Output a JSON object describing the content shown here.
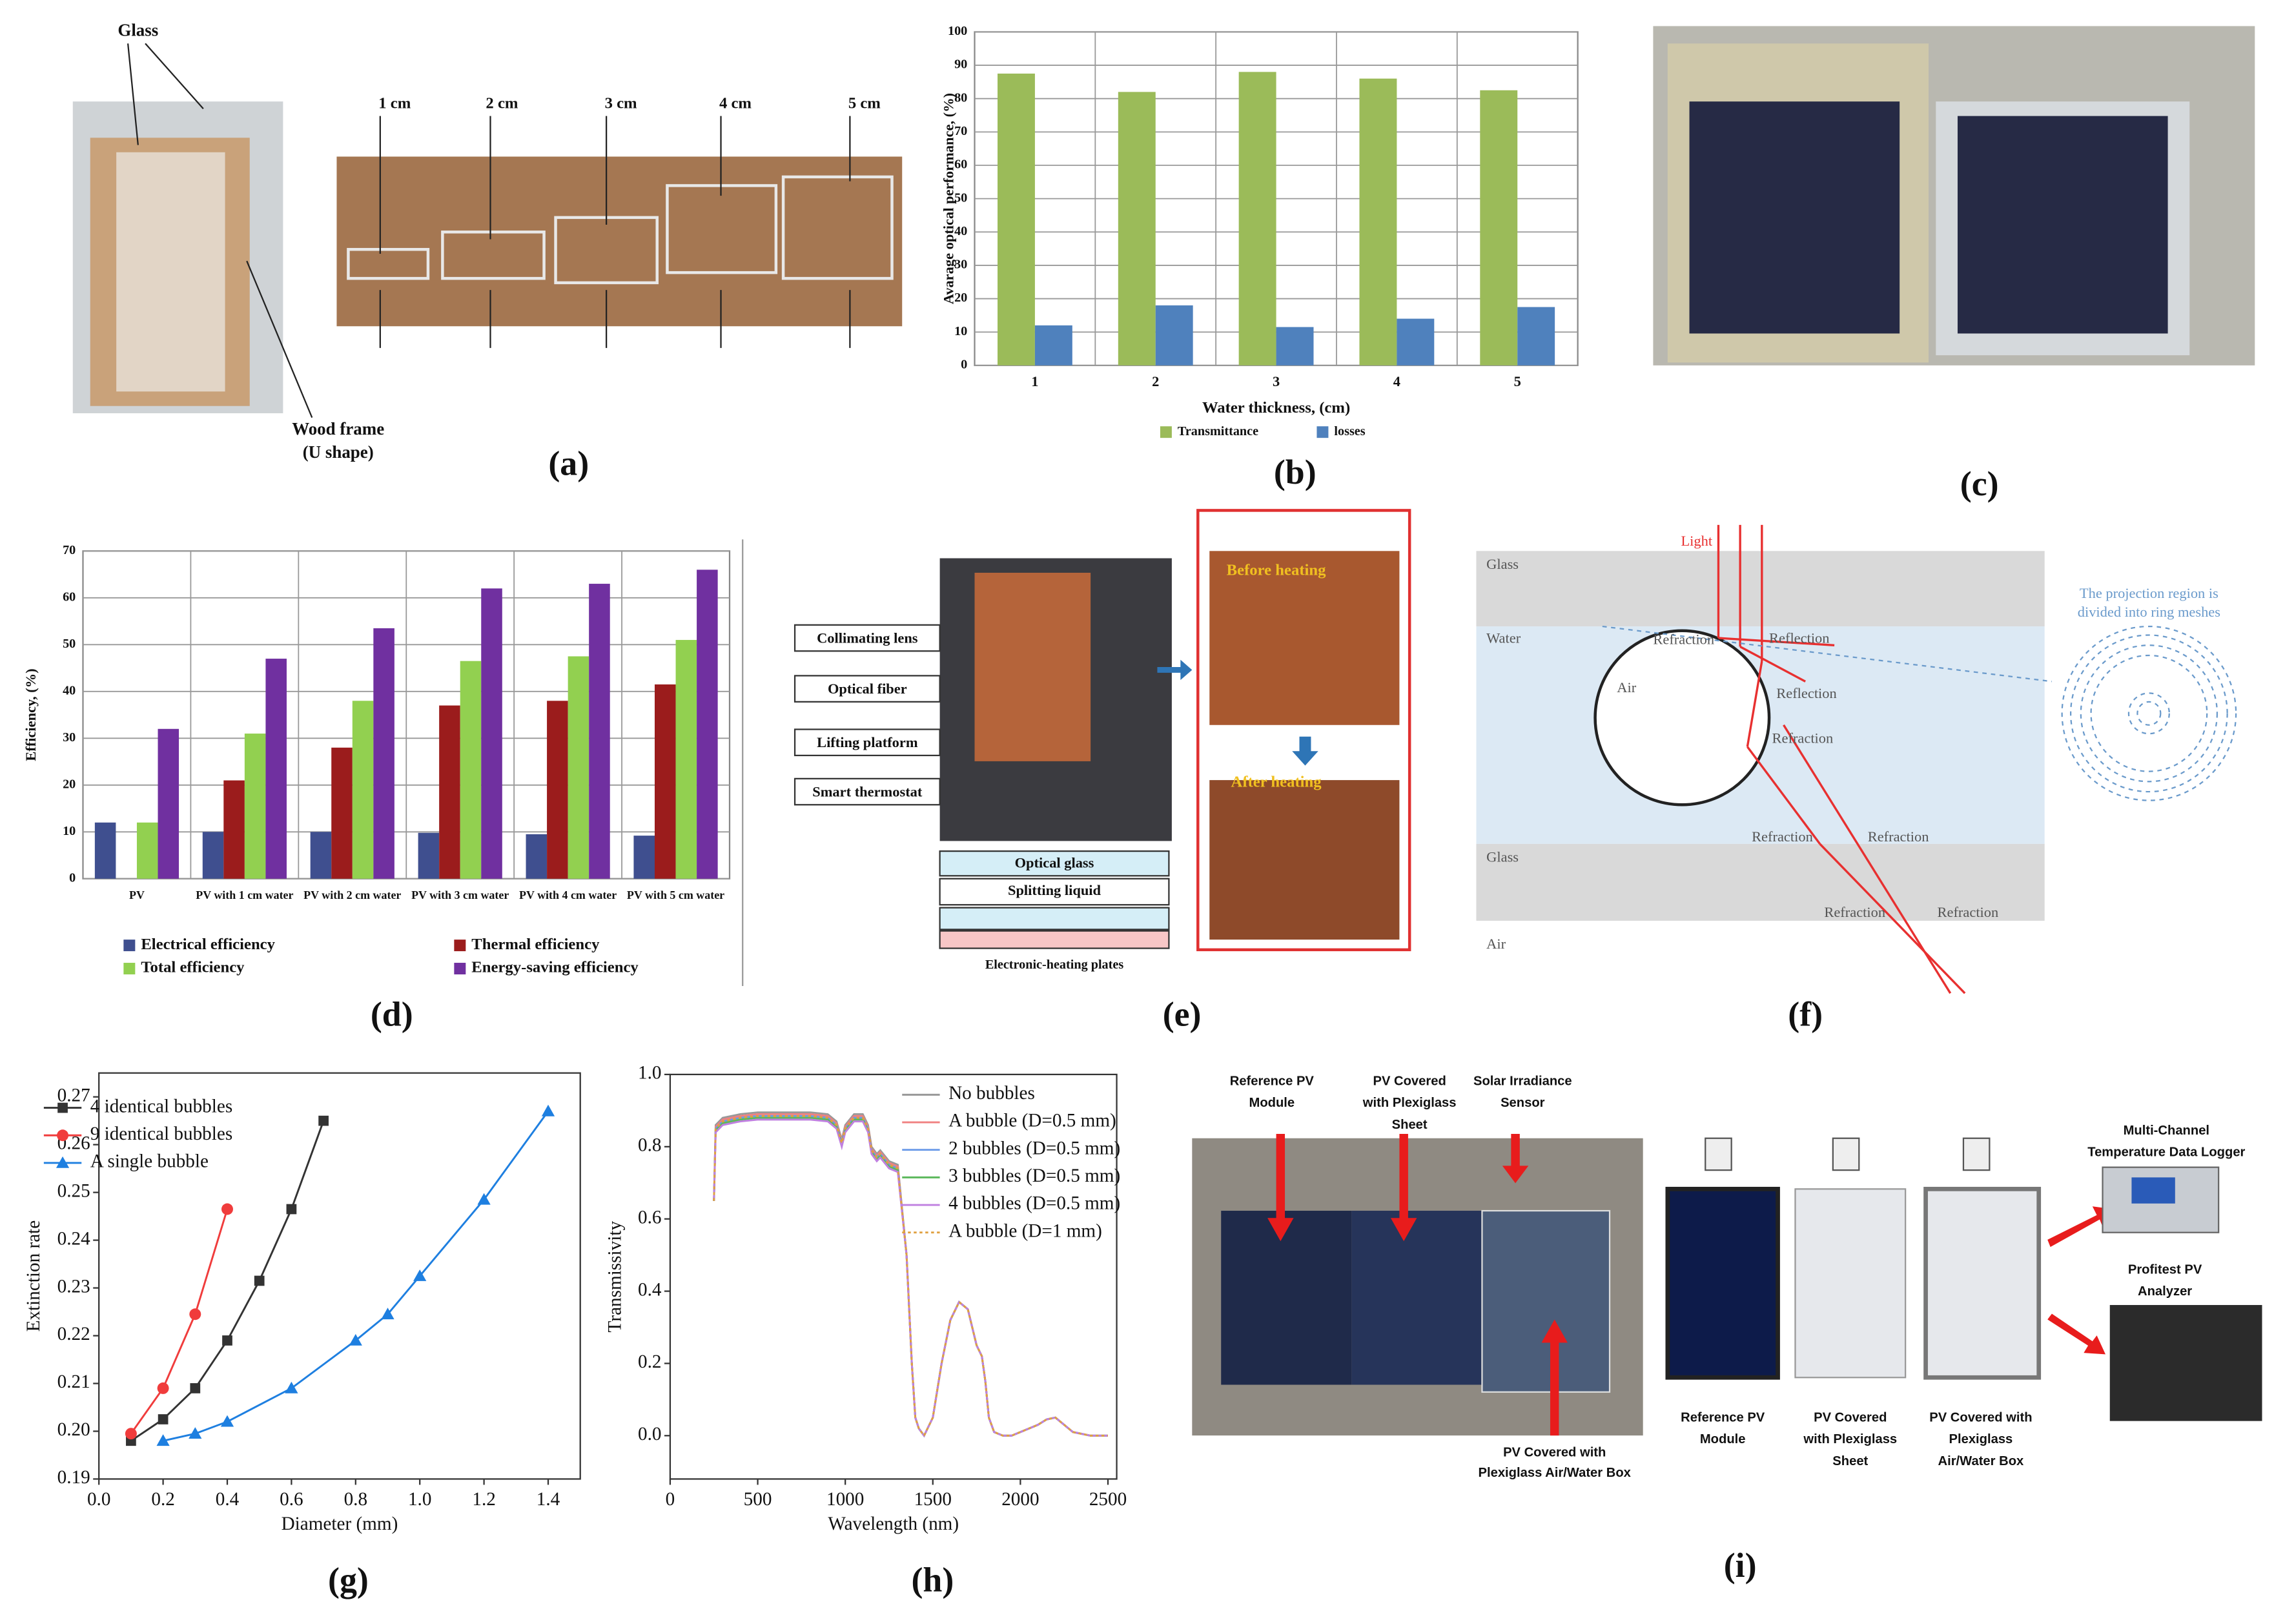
{
  "panel_labels": [
    "(a)",
    "(b)",
    "(c)",
    "(d)",
    "(e)",
    "(f)",
    "(g)",
    "(h)",
    "(i)"
  ],
  "panel_a": {
    "glass": "Glass",
    "sizes": [
      "1 cm",
      "2 cm",
      "3 cm",
      "4 cm",
      "5 cm"
    ],
    "frame": [
      "Wood frame",
      "(U shape)"
    ]
  },
  "panel_e": {
    "callouts": [
      "Collimating lens",
      "Optical fiber",
      "Lifting platform",
      "Smart thermostat"
    ],
    "layers": [
      "Optical glass",
      "Splitting liquid"
    ],
    "heater": "Electronic-heating plates",
    "before": "Before heating",
    "after": "After heating"
  },
  "panel_f": {
    "light": "Light",
    "glass_top": "Glass",
    "water": "Water",
    "air_bubble": "Air",
    "glass_bottom": "Glass",
    "air_below": "Air",
    "refraction": "Refraction",
    "reflection": "Reflection",
    "projection": [
      "The projection region is",
      "divided into ring meshes"
    ]
  },
  "panel_i": {
    "photo_labels": [
      [
        "Reference PV",
        "Module"
      ],
      [
        "PV Covered",
        "with Plexiglass",
        "Sheet"
      ],
      [
        "Solar Irradiance",
        "Sensor"
      ],
      [
        "PV Covered with",
        "Plexiglass Air/Water Box"
      ]
    ],
    "module_labels": [
      [
        "Reference PV",
        "Module"
      ],
      [
        "PV Covered",
        "with Plexiglass",
        "Sheet"
      ],
      [
        "PV Covered with",
        "Plexiglass",
        "Air/Water Box"
      ]
    ],
    "logger": [
      "Multi-Channel",
      "Temperature Data Logger"
    ],
    "analyzer": [
      "Profitest PV",
      "Analyzer"
    ]
  },
  "chart_data": [
    {
      "type": "bar",
      "xlabel": "Water thickness, (cm)",
      "ylabel": "Avarage optical performance, (%)",
      "categories": [
        "1",
        "2",
        "3",
        "4",
        "5"
      ],
      "series": [
        {
          "name": "Transmittance",
          "color": "#9bbb59",
          "values": [
            87.5,
            82,
            88,
            86,
            82.5
          ]
        },
        {
          "name": "losses",
          "color": "#4f81bd",
          "values": [
            12,
            18,
            11.5,
            14,
            17.5
          ]
        }
      ],
      "ylim": [
        0,
        100
      ],
      "yticks": [
        0,
        10,
        20,
        30,
        40,
        50,
        60,
        70,
        80,
        90,
        100
      ],
      "grid": true
    },
    {
      "type": "bar",
      "ylabel": "Efficiency, (%)",
      "categories": [
        "PV",
        "PV with 1 cm water",
        "PV with 2 cm water",
        "PV with 3 cm water",
        "PV with 4 cm water",
        "PV with 5 cm water"
      ],
      "series": [
        {
          "name": "Electrical efficiency",
          "color": "#3f4f8f",
          "values": [
            12,
            10,
            10,
            9.8,
            9.5,
            9.2
          ]
        },
        {
          "name": "Thermal efficiency",
          "color": "#9b1c1c",
          "values": [
            null,
            21,
            28,
            37,
            38,
            41.5
          ]
        },
        {
          "name": "Total efficiency",
          "color": "#92d050",
          "values": [
            12,
            31,
            38,
            46.5,
            47.5,
            51
          ]
        },
        {
          "name": "Energy-saving efficiency",
          "color": "#7030a0",
          "values": [
            32,
            47,
            53.5,
            62,
            63,
            66
          ]
        }
      ],
      "ylim": [
        0,
        70
      ],
      "yticks": [
        0,
        10,
        20,
        30,
        40,
        50,
        60,
        70
      ],
      "grid": true
    },
    {
      "type": "line",
      "xlabel": "Diameter (mm)",
      "ylabel": "Extinction rate",
      "xlim": [
        0,
        1.5
      ],
      "ylim": [
        0.19,
        0.275
      ],
      "xticks": [
        {
          "value": 0,
          "label": "0.0"
        },
        0.2,
        0.4,
        0.6,
        0.8,
        {
          "value": 1,
          "label": "1.0"
        },
        1.2,
        1.4
      ],
      "yticks": [
        0.19,
        {
          "value": 0.2,
          "label": "0.20"
        },
        0.21,
        0.22,
        0.23,
        0.24,
        0.25,
        0.26,
        0.27
      ],
      "series": [
        {
          "name": "4 identical bubbles",
          "color": "#333333",
          "marker": "square",
          "x": [
            0.1,
            0.2,
            0.3,
            0.4,
            0.5,
            0.6,
            0.7
          ],
          "values": [
            0.198,
            0.2025,
            0.209,
            0.219,
            0.2315,
            0.2465,
            0.265
          ]
        },
        {
          "name": "9 identical bubbles",
          "color": "#f03c3c",
          "marker": "circle",
          "x": [
            0.1,
            0.2,
            0.3,
            0.4
          ],
          "values": [
            0.1995,
            0.209,
            0.2245,
            0.2465
          ]
        },
        {
          "name": "A single bubble",
          "color": "#1e7fe0",
          "marker": "triangle",
          "x": [
            0.2,
            0.3,
            0.4,
            0.6,
            0.8,
            0.9,
            1,
            1.2,
            1.4
          ],
          "values": [
            0.198,
            0.1995,
            0.202,
            0.209,
            0.219,
            0.2245,
            0.2325,
            0.2485,
            0.267
          ]
        }
      ]
    },
    {
      "type": "line",
      "xlabel": "Wavelength (nm)",
      "ylabel": "Transmissivity",
      "xlim": [
        0,
        2550
      ],
      "ylim": [
        -0.12,
        1
      ],
      "xticks": [
        0,
        500,
        1000,
        1500,
        2000,
        2500
      ],
      "yticks": [
        {
          "value": 0,
          "label": "0.0"
        },
        0.2,
        0.4,
        0.6,
        0.8,
        {
          "value": 1,
          "label": "1.0"
        }
      ],
      "x": [
        250,
        260,
        300,
        400,
        500,
        600,
        700,
        800,
        900,
        950,
        980,
        1000,
        1050,
        1100,
        1130,
        1150,
        1180,
        1200,
        1250,
        1300,
        1350,
        1380,
        1400,
        1420,
        1450,
        1500,
        1550,
        1600,
        1650,
        1700,
        1750,
        1780,
        1800,
        1820,
        1850,
        1900,
        1950,
        2000,
        2100,
        2150,
        2200,
        2250,
        2300,
        2400,
        2500
      ],
      "series": [
        {
          "name": "No bubbles",
          "color": "#999999",
          "values": [
            0.65,
            0.86,
            0.88,
            0.89,
            0.895,
            0.895,
            0.895,
            0.895,
            0.89,
            0.87,
            0.82,
            0.86,
            0.89,
            0.89,
            0.86,
            0.8,
            0.78,
            0.79,
            0.76,
            0.75,
            0.5,
            0.2,
            0.05,
            0.02,
            0,
            0.05,
            0.2,
            0.32,
            0.37,
            0.35,
            0.25,
            0.22,
            0.15,
            0.05,
            0.01,
            0,
            0,
            0.01,
            0.03,
            0.045,
            0.05,
            0.03,
            0.01,
            0,
            0
          ]
        },
        {
          "name": "A bubble (D=0.5 mm)",
          "color": "#f08080",
          "values": [
            0.65,
            0.855,
            0.875,
            0.885,
            0.89,
            0.89,
            0.89,
            0.89,
            0.885,
            0.865,
            0.815,
            0.855,
            0.885,
            0.885,
            0.855,
            0.795,
            0.775,
            0.785,
            0.755,
            0.745,
            0.5,
            0.2,
            0.05,
            0.02,
            0,
            0.05,
            0.2,
            0.32,
            0.37,
            0.35,
            0.25,
            0.22,
            0.15,
            0.05,
            0.01,
            0,
            0,
            0.01,
            0.03,
            0.045,
            0.05,
            0.03,
            0.01,
            0,
            0
          ]
        },
        {
          "name": "2 bubbles (D=0.5 mm)",
          "color": "#6a9ae8",
          "values": [
            0.65,
            0.85,
            0.87,
            0.88,
            0.885,
            0.885,
            0.885,
            0.885,
            0.88,
            0.86,
            0.81,
            0.85,
            0.88,
            0.88,
            0.85,
            0.79,
            0.77,
            0.78,
            0.75,
            0.74,
            0.5,
            0.2,
            0.05,
            0.02,
            0,
            0.05,
            0.2,
            0.32,
            0.37,
            0.35,
            0.25,
            0.22,
            0.15,
            0.05,
            0.01,
            0,
            0,
            0.01,
            0.03,
            0.045,
            0.05,
            0.03,
            0.01,
            0,
            0
          ]
        },
        {
          "name": "3 bubbles (D=0.5 mm)",
          "color": "#5cb85c",
          "values": [
            0.65,
            0.845,
            0.865,
            0.875,
            0.88,
            0.88,
            0.88,
            0.88,
            0.875,
            0.855,
            0.805,
            0.845,
            0.875,
            0.875,
            0.845,
            0.785,
            0.765,
            0.775,
            0.745,
            0.735,
            0.5,
            0.2,
            0.05,
            0.02,
            0,
            0.05,
            0.2,
            0.32,
            0.37,
            0.35,
            0.25,
            0.22,
            0.15,
            0.05,
            0.01,
            0,
            0,
            0.01,
            0.03,
            0.045,
            0.05,
            0.03,
            0.01,
            0,
            0
          ]
        },
        {
          "name": "4 bubbles (D=0.5 mm)",
          "color": "#c080e0",
          "values": [
            0.65,
            0.84,
            0.86,
            0.87,
            0.875,
            0.875,
            0.875,
            0.875,
            0.87,
            0.85,
            0.8,
            0.84,
            0.87,
            0.87,
            0.84,
            0.78,
            0.76,
            0.77,
            0.74,
            0.73,
            0.5,
            0.2,
            0.05,
            0.02,
            0,
            0.05,
            0.2,
            0.32,
            0.37,
            0.35,
            0.25,
            0.22,
            0.15,
            0.05,
            0.01,
            0,
            0,
            0.01,
            0.03,
            0.045,
            0.05,
            0.03,
            0.01,
            0,
            0
          ]
        },
        {
          "name": "A bubble (D=1 mm)",
          "color": "#e0a040",
          "style": "dotted",
          "values": [
            0.65,
            0.85,
            0.87,
            0.88,
            0.885,
            0.885,
            0.885,
            0.885,
            0.88,
            0.86,
            0.81,
            0.85,
            0.88,
            0.88,
            0.85,
            0.79,
            0.77,
            0.78,
            0.75,
            0.74,
            0.5,
            0.2,
            0.05,
            0.02,
            0,
            0.05,
            0.2,
            0.32,
            0.37,
            0.35,
            0.25,
            0.22,
            0.15,
            0.05,
            0.01,
            0,
            0,
            0.01,
            0.03,
            0.045,
            0.05,
            0.03,
            0.01,
            0,
            0
          ]
        }
      ]
    }
  ]
}
